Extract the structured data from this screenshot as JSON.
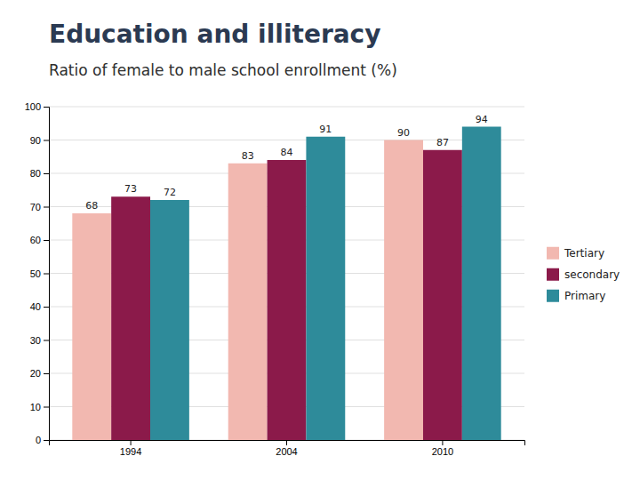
{
  "chart_data": {
    "type": "bar",
    "title": "Education and illiteracy",
    "subtitle": "Ratio of female to male school enrollment (%)",
    "categories": [
      "1994",
      "2004",
      "2010"
    ],
    "series": [
      {
        "name": "Tertiary",
        "color": "#F2B8B0",
        "values": [
          68,
          83,
          90
        ]
      },
      {
        "name": "secondary",
        "color": "#8B1A4A",
        "values": [
          73,
          84,
          87
        ]
      },
      {
        "name": "Primary",
        "color": "#2E8B9A",
        "values": [
          72,
          91,
          94
        ]
      }
    ],
    "ylim": [
      0,
      100
    ],
    "yticks": [
      0,
      10,
      20,
      30,
      40,
      50,
      60,
      70,
      80,
      90,
      100
    ],
    "grid": true,
    "legend": "right",
    "data_labels": true
  }
}
